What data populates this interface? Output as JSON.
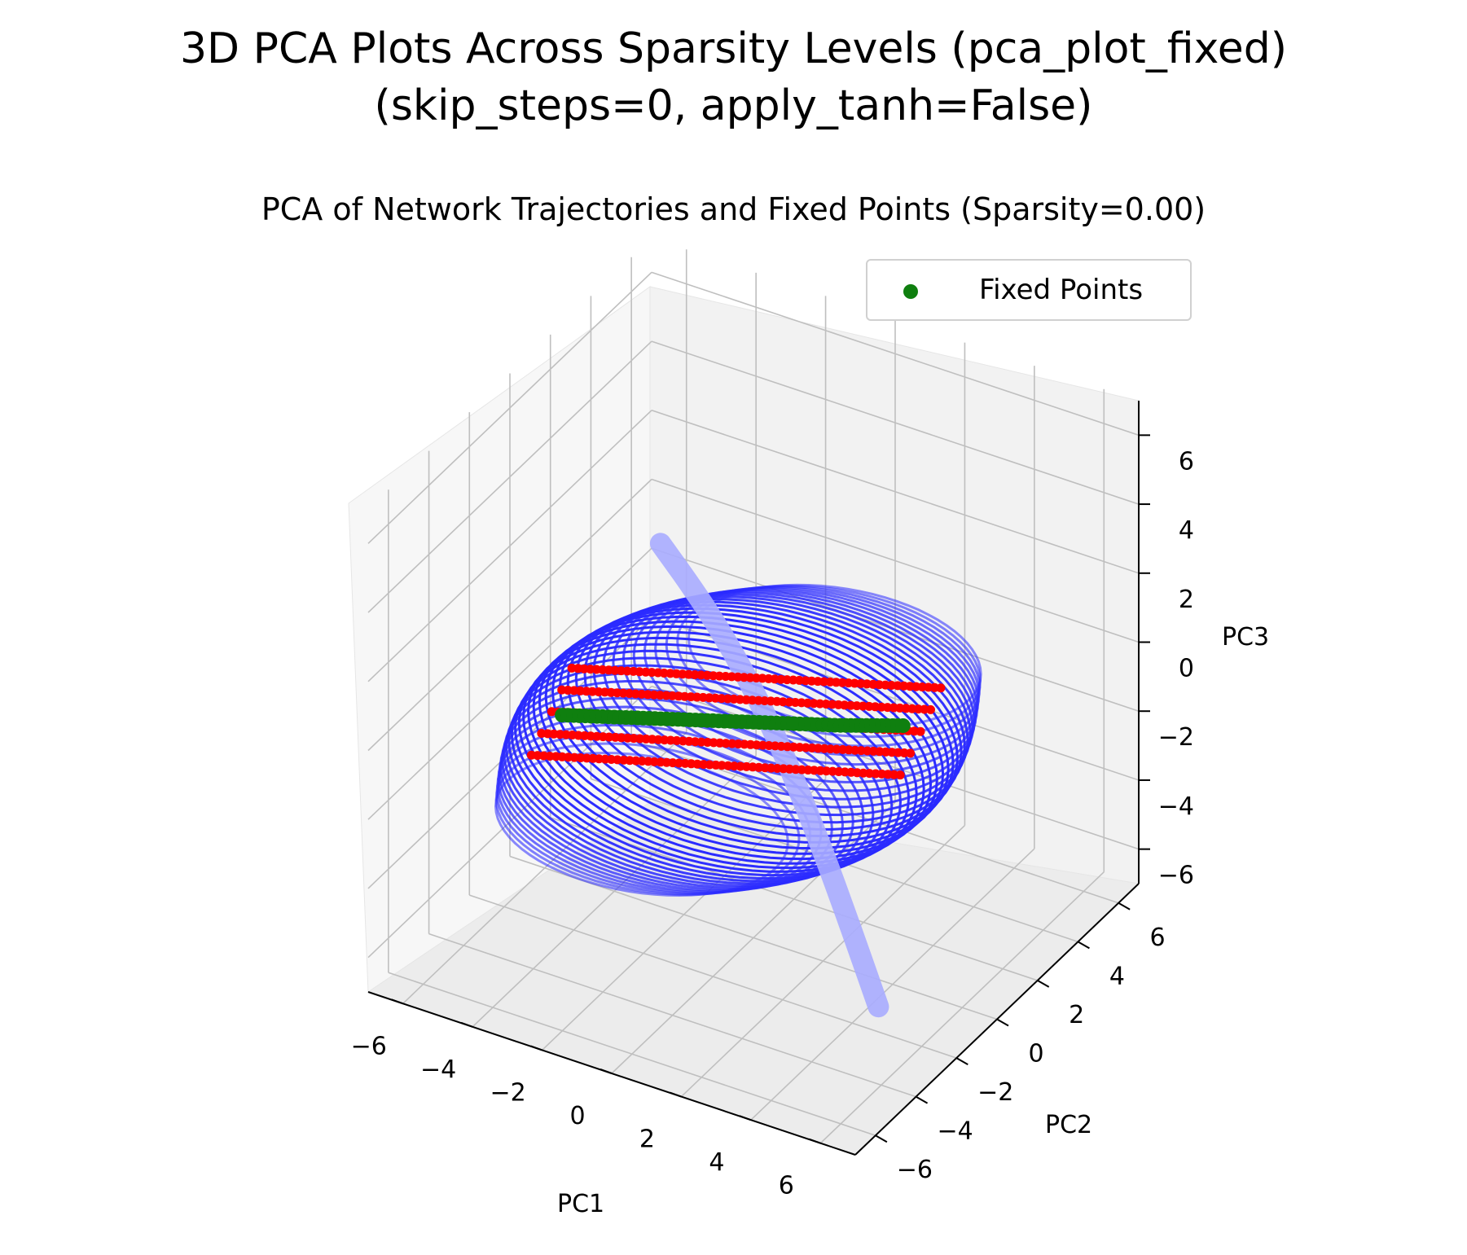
{
  "chart_data": {
    "type": "scatter",
    "suptitle_line1": "3D PCA Plots Across Sparsity Levels (pca_plot_fixed)",
    "suptitle_line2": "(skip_steps=0, apply_tanh=False)",
    "title": "PCA of Network Trajectories and Fixed Points (Sparsity=0.00)",
    "xlabel": "PC1",
    "ylabel": "PC2",
    "zlabel": "PC3",
    "xlim": [
      -7,
      7
    ],
    "ylim": [
      -7,
      7
    ],
    "zlim": [
      -7,
      7
    ],
    "x_ticks": [
      "−6",
      "−4",
      "−2",
      "0",
      "2",
      "4",
      "6"
    ],
    "y_ticks": [
      "−6",
      "−4",
      "−2",
      "0",
      "2",
      "4",
      "6"
    ],
    "z_ticks": [
      "−6",
      "−4",
      "−2",
      "0",
      "2",
      "4",
      "6"
    ],
    "grid": true,
    "legend": {
      "position": "top-right",
      "entries": [
        "Fixed Points"
      ]
    },
    "series": [
      {
        "kind": "trajectories",
        "color": "#2b2bff"
      },
      {
        "kind": "slow-points",
        "color": "#ff0000"
      },
      {
        "name": "Fixed Points",
        "kind": "fixed-points",
        "color": "#0f7f0f",
        "points": [
          [
            -5.5,
            0.0,
            -2.4
          ],
          [
            -3.5,
            0.0,
            -1.8
          ],
          [
            -1.5,
            0.0,
            -1.2
          ],
          [
            0.5,
            0.0,
            -0.6
          ],
          [
            2.5,
            0.0,
            0.0
          ],
          [
            4.3,
            0.0,
            0.6
          ]
        ]
      }
    ]
  }
}
